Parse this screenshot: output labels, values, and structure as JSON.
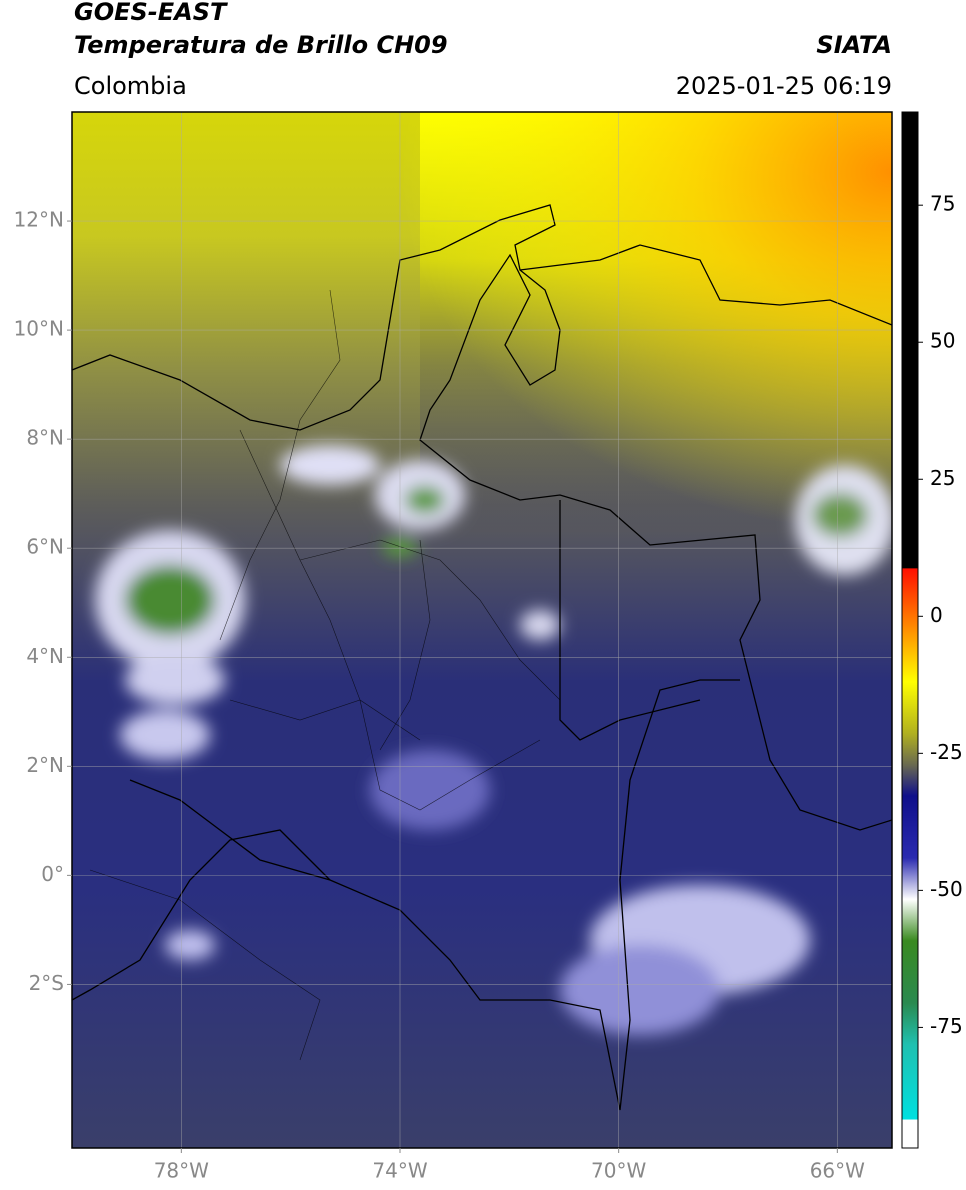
{
  "header": {
    "title": "GOES-EAST",
    "subtitle": "Temperatura de Brillo CH09",
    "source": "SIATA",
    "region": "Colombia",
    "datetime": "2025-01-25 06:19"
  },
  "map": {
    "lonlim": [
      -80,
      -65
    ],
    "latlim": [
      -5,
      14
    ],
    "lon_ticks": [
      {
        "value": -78,
        "label": "78°W"
      },
      {
        "value": -74,
        "label": "74°W"
      },
      {
        "value": -70,
        "label": "70°W"
      },
      {
        "value": -66,
        "label": "66°W"
      }
    ],
    "lat_ticks": [
      {
        "value": 12,
        "label": "12°N"
      },
      {
        "value": 10,
        "label": "10°N"
      },
      {
        "value": 8,
        "label": "8°N"
      },
      {
        "value": 6,
        "label": "6°N"
      },
      {
        "value": 4,
        "label": "4°N"
      },
      {
        "value": 2,
        "label": "2°N"
      },
      {
        "value": 0,
        "label": "0°"
      },
      {
        "value": -2,
        "label": "2°S"
      }
    ]
  },
  "colorbar": {
    "lim": [
      -97,
      92
    ],
    "ticks": [
      75,
      50,
      25,
      0,
      -25,
      -50,
      -75
    ]
  }
}
